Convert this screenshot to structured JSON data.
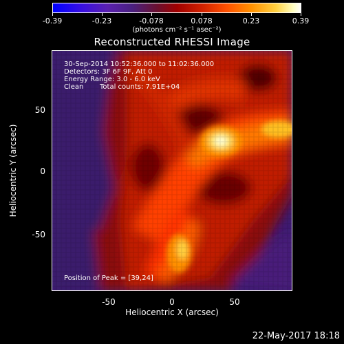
{
  "colorbar": {
    "ticks": [
      "-0.39",
      "-0.23",
      "-0.078",
      "0.078",
      "0.23",
      "0.39"
    ],
    "units": "(photons cm⁻² s⁻¹ asec⁻²)"
  },
  "title": "Reconstructed RHESSI Image",
  "info": {
    "time_range": "30-Sep-2014 10:52:36.000 to 11:02:36.000",
    "detectors": "Detectors: 3F 6F 9F, Att 0",
    "energy": "Energy Range: 3.0 - 6.0 keV",
    "method": "Clean",
    "counts": "Total counts: 7.91E+04",
    "peak": "Position of Peak = [39,24]"
  },
  "axes": {
    "xlabel": "Heliocentric X (arcsec)",
    "ylabel": "Heliocentric Y (arcsec)",
    "xticks": [
      "-50",
      "0",
      "50"
    ],
    "yticks": [
      "50",
      "0",
      "-50"
    ]
  },
  "timestamp": "22-May-2017 18:18"
}
